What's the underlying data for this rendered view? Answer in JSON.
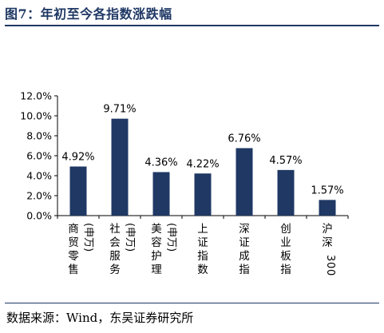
{
  "header": {
    "title": "图7：年初至今各指数涨跌幅"
  },
  "footer": {
    "source": "数据来源：Wind，东吴证券研究所"
  },
  "chart_data": {
    "type": "bar",
    "title": "",
    "xlabel": "",
    "ylabel": "",
    "ylim": [
      0,
      12
    ],
    "yticks": [
      "0.0%",
      "2.0%",
      "4.0%",
      "6.0%",
      "8.0%",
      "10.0%",
      "12.0%"
    ],
    "grid": false,
    "legend": "none",
    "bar_color": "#1f3864",
    "categories": [
      {
        "main": "商贸零售",
        "sub": "(申万)"
      },
      {
        "main": "社会服务",
        "sub": "(申万)"
      },
      {
        "main": "美容护理",
        "sub": "(申万)"
      },
      {
        "main": "上证指数",
        "sub": ""
      },
      {
        "main": "深证成指",
        "sub": ""
      },
      {
        "main": "创业板指",
        "sub": ""
      },
      {
        "main": "沪深300",
        "sub": ""
      }
    ],
    "values": [
      4.92,
      9.71,
      4.36,
      4.22,
      6.76,
      4.57,
      1.57
    ],
    "data_labels": [
      "4.92%",
      "9.71%",
      "4.36%",
      "4.22%",
      "6.76%",
      "4.57%",
      "1.57%"
    ]
  }
}
